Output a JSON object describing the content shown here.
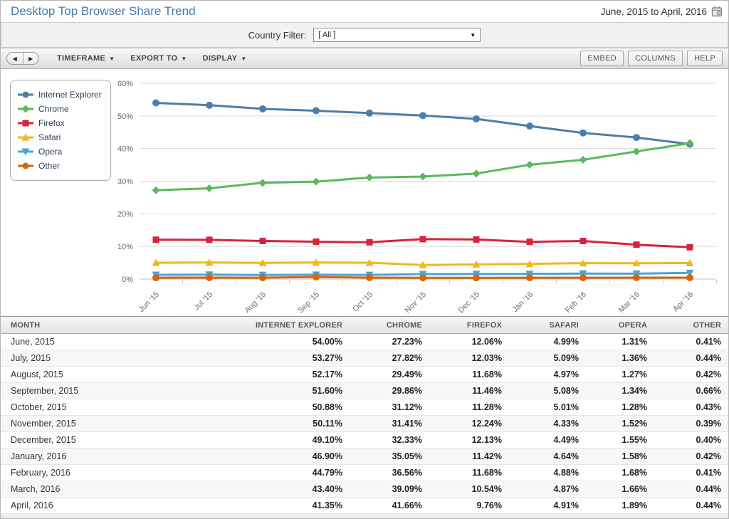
{
  "header": {
    "title": "Desktop Top Browser Share Trend",
    "date_range": "June, 2015 to April, 2016"
  },
  "filter_bar": {
    "label": "Country Filter:",
    "selected_value": "[ All ]"
  },
  "toolbar": {
    "menus": [
      {
        "label": "TIMEFRAME"
      },
      {
        "label": "EXPORT TO"
      },
      {
        "label": "DISPLAY"
      }
    ],
    "buttons": {
      "embed": "EMBED",
      "columns": "COLUMNS",
      "help": "HELP"
    },
    "nav": {
      "back": "◀",
      "forward": "▶"
    }
  },
  "chart_data": {
    "type": "line",
    "title": "",
    "xlabel": "",
    "ylabel": "",
    "ylim": [
      0,
      60
    ],
    "ytick_step": 10,
    "ytick_labels": [
      "0%",
      "10%",
      "20%",
      "30%",
      "40%",
      "50%",
      "60%"
    ],
    "grid": true,
    "legend_position": "top-left",
    "categories": [
      "Jun '15",
      "Jul '15",
      "Aug '15",
      "Sep '15",
      "Oct '15",
      "Nov '15",
      "Dec '15",
      "Jan '16",
      "Feb '16",
      "Mar '16",
      "Apr '16"
    ],
    "series": [
      {
        "name": "Internet Explorer",
        "color": "#4d7ea8",
        "marker": "circle",
        "values": [
          54.0,
          53.27,
          52.17,
          51.6,
          50.88,
          50.11,
          49.1,
          46.9,
          44.79,
          43.4,
          41.35
        ]
      },
      {
        "name": "Chrome",
        "color": "#5cb85c",
        "marker": "diamond",
        "values": [
          27.23,
          27.82,
          29.49,
          29.86,
          31.12,
          31.41,
          32.33,
          35.05,
          36.56,
          39.09,
          41.66
        ]
      },
      {
        "name": "Firefox",
        "color": "#d6233e",
        "marker": "square",
        "values": [
          12.06,
          12.03,
          11.68,
          11.46,
          11.28,
          12.24,
          12.13,
          11.42,
          11.68,
          10.54,
          9.76
        ]
      },
      {
        "name": "Safari",
        "color": "#eeb81f",
        "marker": "triangle",
        "values": [
          4.99,
          5.09,
          4.97,
          5.08,
          5.01,
          4.33,
          4.49,
          4.64,
          4.88,
          4.87,
          4.91
        ]
      },
      {
        "name": "Opera",
        "color": "#4aa4d6",
        "marker": "triangle-down",
        "values": [
          1.31,
          1.36,
          1.27,
          1.34,
          1.28,
          1.52,
          1.55,
          1.58,
          1.68,
          1.66,
          1.89
        ]
      },
      {
        "name": "Other",
        "color": "#d5660d",
        "marker": "circle",
        "values": [
          0.41,
          0.44,
          0.42,
          0.66,
          0.43,
          0.39,
          0.4,
          0.42,
          0.41,
          0.44,
          0.44
        ]
      }
    ]
  },
  "table": {
    "columns": [
      "MONTH",
      "INTERNET EXPLORER",
      "CHROME",
      "FIREFOX",
      "SAFARI",
      "OPERA",
      "OTHER"
    ],
    "rows": [
      [
        "June, 2015",
        "54.00%",
        "27.23%",
        "12.06%",
        "4.99%",
        "1.31%",
        "0.41%"
      ],
      [
        "July, 2015",
        "53.27%",
        "27.82%",
        "12.03%",
        "5.09%",
        "1.36%",
        "0.44%"
      ],
      [
        "August, 2015",
        "52.17%",
        "29.49%",
        "11.68%",
        "4.97%",
        "1.27%",
        "0.42%"
      ],
      [
        "September, 2015",
        "51.60%",
        "29.86%",
        "11.46%",
        "5.08%",
        "1.34%",
        "0.66%"
      ],
      [
        "October, 2015",
        "50.88%",
        "31.12%",
        "11.28%",
        "5.01%",
        "1.28%",
        "0.43%"
      ],
      [
        "November, 2015",
        "50.11%",
        "31.41%",
        "12.24%",
        "4.33%",
        "1.52%",
        "0.39%"
      ],
      [
        "December, 2015",
        "49.10%",
        "32.33%",
        "12.13%",
        "4.49%",
        "1.55%",
        "0.40%"
      ],
      [
        "January, 2016",
        "46.90%",
        "35.05%",
        "11.42%",
        "4.64%",
        "1.58%",
        "0.42%"
      ],
      [
        "February, 2016",
        "44.79%",
        "36.56%",
        "11.68%",
        "4.88%",
        "1.68%",
        "0.41%"
      ],
      [
        "March, 2016",
        "43.40%",
        "39.09%",
        "10.54%",
        "4.87%",
        "1.66%",
        "0.44%"
      ],
      [
        "April, 2016",
        "41.35%",
        "41.66%",
        "9.76%",
        "4.91%",
        "1.89%",
        "0.44%"
      ]
    ]
  }
}
